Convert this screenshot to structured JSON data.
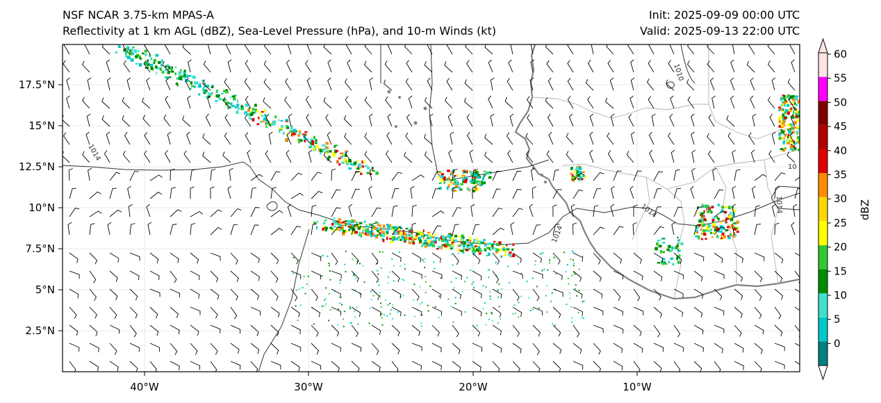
{
  "header": {
    "model": "NSF NCAR 3.75-km MPAS-A",
    "fields": "Reflectivity at 1 km AGL (dBZ), Sea-Level Pressure (hPa), and 10-m Winds (kt)",
    "init": "Init: 2025-09-09 00:00 UTC",
    "valid": "Valid: 2025-09-13 22:00 UTC"
  },
  "map": {
    "lon_ticks": [
      "40°W",
      "30°W",
      "20°W",
      "10°W"
    ],
    "lat_ticks": [
      "17.5°N",
      "15°N",
      "12.5°N",
      "10°N",
      "7.5°N",
      "5°N",
      "2.5°N"
    ],
    "contour_labels": [
      "1010",
      "1014",
      "1014",
      "1014",
      "1014",
      "10"
    ]
  },
  "colorbar": {
    "label": "dBZ",
    "ticks": [
      "60",
      "55",
      "50",
      "45",
      "40",
      "35",
      "30",
      "25",
      "20",
      "15",
      "10",
      "5",
      "0"
    ],
    "colors": [
      "#008080",
      "#00c8c8",
      "#40e0d0",
      "#008c00",
      "#32c832",
      "#ffff00",
      "#ffd700",
      "#ff8c00",
      "#e00000",
      "#b40000",
      "#800000",
      "#ff00ff",
      "#ffe4e1"
    ]
  }
}
